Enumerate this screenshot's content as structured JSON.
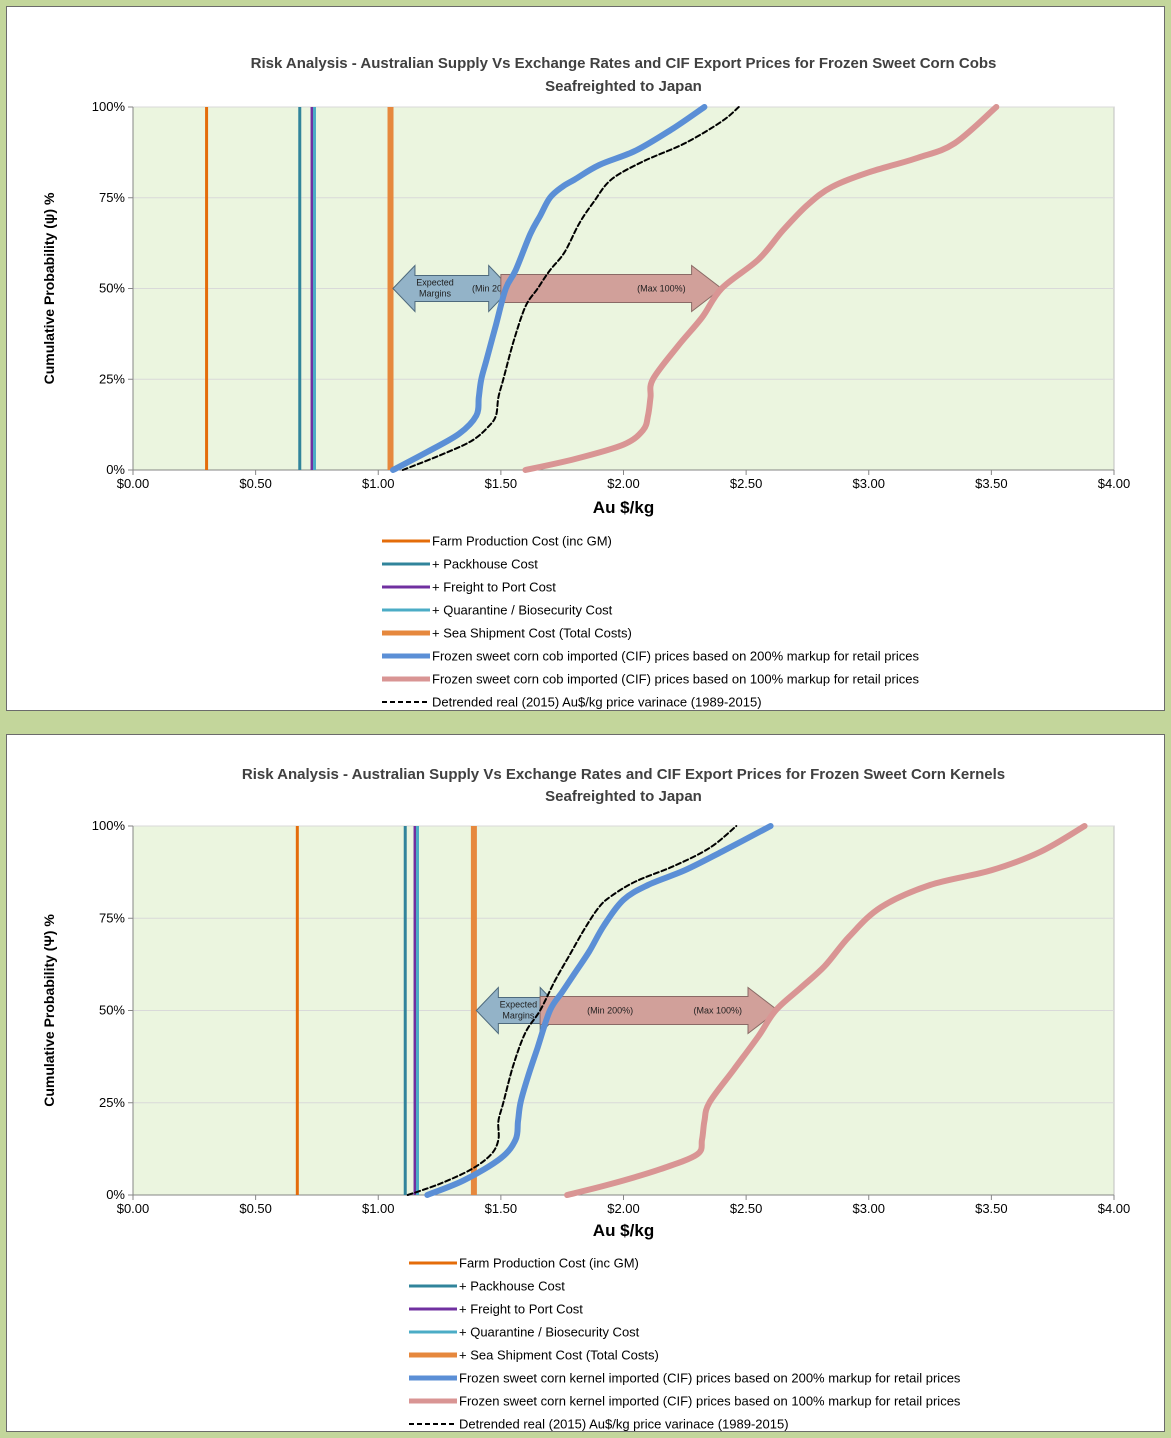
{
  "chart_data": [
    {
      "type": "line",
      "title": "Risk Analysis - Australian Supply Vs Exchange Rates and CIF Export Prices for Frozen Sweet Corn Cobs",
      "subtitle": "Seafreighted to Japan",
      "xlabel": "Au $/kg",
      "ylabel": "Cumulative Probability (ψ) %",
      "xlim": [
        0,
        4
      ],
      "ylim": [
        0,
        100
      ],
      "x_ticks": [
        "$0.00",
        "$0.50",
        "$1.00",
        "$1.50",
        "$2.00",
        "$2.50",
        "$3.00",
        "$3.50",
        "$4.00"
      ],
      "y_ticks": [
        "0%",
        "25%",
        "50%",
        "75%",
        "100%"
      ],
      "grid": true,
      "plot_background": "#ebf5df",
      "vertical_lines": [
        {
          "name": "Farm Production Cost (inc GM)",
          "x": 0.3,
          "color": "#e46c0a",
          "width": 3
        },
        {
          "name": "+ Packhouse Cost",
          "x": 0.68,
          "color": "#31849b",
          "width": 3
        },
        {
          "name": "+ Freight to Port Cost",
          "x": 0.73,
          "color": "#7030a0",
          "width": 3
        },
        {
          "name": "+ Quarantine / Biosecurity Cost",
          "x": 0.74,
          "color": "#4bacc6",
          "width": 3
        },
        {
          "name": "+ Sea Shipment Cost (Total Costs)",
          "x": 1.05,
          "color": "#e6883d",
          "width": 6
        }
      ],
      "series": [
        {
          "name": "Frozen sweet corn cob imported (CIF) prices based on 200% markup for retail prices",
          "color": "#5b8fd6",
          "width": 6,
          "dash": false,
          "x": [
            1.06,
            1.2,
            1.33,
            1.4,
            1.41,
            1.42,
            1.44,
            1.48,
            1.52,
            1.56,
            1.62,
            1.66,
            1.7,
            1.75,
            1.8,
            1.9,
            2.05,
            2.2,
            2.33
          ],
          "y": [
            0,
            5,
            10,
            15,
            20,
            25,
            30,
            40,
            50,
            55,
            65,
            70,
            75,
            78,
            80,
            84,
            88,
            94,
            100
          ]
        },
        {
          "name": "Frozen sweet corn cob imported (CIF) prices based on 100% markup for retail prices",
          "color": "#d99594",
          "width": 6,
          "dash": false,
          "x": [
            1.6,
            1.8,
            2.0,
            2.08,
            2.1,
            2.11,
            2.12,
            2.22,
            2.32,
            2.4,
            2.55,
            2.65,
            2.75,
            2.85,
            3.0,
            3.2,
            3.35,
            3.52
          ],
          "y": [
            0,
            3,
            7,
            11,
            15,
            20,
            25,
            34,
            42,
            50,
            58,
            66,
            73,
            78,
            82,
            86,
            90,
            100
          ]
        },
        {
          "name": "Detrended real (2015) Au$/kg price varinace (1989-2015)",
          "color": "#000000",
          "width": 2,
          "dash": true,
          "x": [
            1.1,
            1.25,
            1.38,
            1.45,
            1.48,
            1.49,
            1.51,
            1.55,
            1.6,
            1.65,
            1.7,
            1.76,
            1.82,
            1.88,
            1.95,
            2.08,
            2.25,
            2.4,
            2.47
          ],
          "y": [
            0,
            4,
            8,
            12,
            15,
            20,
            25,
            35,
            45,
            50,
            55,
            60,
            68,
            74,
            80,
            85,
            90,
            96,
            100
          ]
        }
      ],
      "annotations": [
        {
          "type": "double-arrow",
          "label_lines": [
            "Expected",
            "Margins"
          ],
          "label2": "(Min 200%)",
          "x_start": 1.06,
          "x_end": 1.54,
          "y": 50,
          "color": "#93b3c8"
        },
        {
          "type": "arrow",
          "label": "(Max 100%)",
          "x_start": 1.5,
          "x_end": 2.4,
          "y": 50,
          "color": "#d1a09a"
        }
      ]
    },
    {
      "type": "line",
      "title": "Risk Analysis - Australian Supply Vs Exchange Rates and CIF Export Prices for Frozen Sweet Corn Kernels",
      "subtitle": "Seafreighted to Japan",
      "xlabel": "Au $/kg",
      "ylabel": "Cumulative Probability (Ψ) %",
      "xlim": [
        0,
        4
      ],
      "ylim": [
        0,
        100
      ],
      "x_ticks": [
        "$0.00",
        "$0.50",
        "$1.00",
        "$1.50",
        "$2.00",
        "$2.50",
        "$3.00",
        "$3.50",
        "$4.00"
      ],
      "y_ticks": [
        "0%",
        "25%",
        "50%",
        "75%",
        "100%"
      ],
      "grid": true,
      "plot_background": "#ebf5df",
      "vertical_lines": [
        {
          "name": "Farm Production Cost (inc GM)",
          "x": 0.67,
          "color": "#e46c0a",
          "width": 3
        },
        {
          "name": "+ Packhouse Cost",
          "x": 1.11,
          "color": "#31849b",
          "width": 3
        },
        {
          "name": "+ Freight to Port Cost",
          "x": 1.15,
          "color": "#7030a0",
          "width": 3
        },
        {
          "name": "+ Quarantine / Biosecurity Cost",
          "x": 1.16,
          "color": "#4bacc6",
          "width": 3
        },
        {
          "name": "+ Sea Shipment Cost (Total Costs)",
          "x": 1.39,
          "color": "#e6883d",
          "width": 6
        }
      ],
      "series": [
        {
          "name": "Frozen sweet corn kernel imported (CIF) prices based on 200% markup for retail prices",
          "color": "#5b8fd6",
          "width": 6,
          "dash": false,
          "x": [
            1.2,
            1.35,
            1.5,
            1.56,
            1.57,
            1.58,
            1.61,
            1.65,
            1.7,
            1.75,
            1.8,
            1.86,
            1.92,
            2.0,
            2.1,
            2.25,
            2.4,
            2.6
          ],
          "y": [
            0,
            4,
            10,
            15,
            20,
            25,
            32,
            40,
            50,
            55,
            60,
            66,
            73,
            80,
            84,
            88,
            93,
            100
          ]
        },
        {
          "name": "Frozen sweet corn kernel imported (CIF) prices based on 100% markup for retail prices",
          "color": "#d99594",
          "width": 6,
          "dash": false,
          "x": [
            1.77,
            1.95,
            2.15,
            2.3,
            2.32,
            2.33,
            2.35,
            2.45,
            2.55,
            2.62,
            2.72,
            2.82,
            2.92,
            3.05,
            3.25,
            3.5,
            3.7,
            3.88
          ],
          "y": [
            0,
            3,
            7,
            11,
            15,
            20,
            25,
            34,
            43,
            50,
            56,
            62,
            70,
            78,
            84,
            88,
            93,
            100
          ]
        },
        {
          "name": "Detrended real (2015) Au$/kg price varinace (1989-2015)",
          "color": "#000000",
          "width": 2,
          "dash": true,
          "x": [
            1.12,
            1.25,
            1.38,
            1.46,
            1.49,
            1.49,
            1.51,
            1.55,
            1.6,
            1.66,
            1.72,
            1.78,
            1.84,
            1.9,
            1.95,
            2.05,
            2.2,
            2.35,
            2.46
          ],
          "y": [
            0,
            3,
            7,
            11,
            15,
            20,
            25,
            35,
            44,
            50,
            58,
            65,
            72,
            78,
            81,
            85,
            89,
            94,
            100
          ]
        }
      ],
      "annotations": [
        {
          "type": "double-arrow",
          "label_lines": [
            "Expected",
            "Margins"
          ],
          "label2": "",
          "x_start": 1.4,
          "x_end": 1.75,
          "y": 50,
          "color": "#93b3c8"
        },
        {
          "type": "arrow",
          "label": "(Max 100%)",
          "label2": "(Min 200%)",
          "x_start": 1.66,
          "x_end": 2.63,
          "y": 50,
          "color": "#d1a09a"
        }
      ]
    }
  ]
}
